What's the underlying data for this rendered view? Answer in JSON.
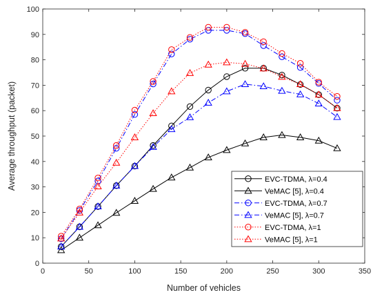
{
  "chart_data": {
    "type": "line",
    "title": "",
    "xlabel": "Number of vehicles",
    "ylabel": "Average throughput (packet)",
    "xlim": [
      0,
      350
    ],
    "ylim": [
      0,
      100
    ],
    "xticks": [
      0,
      50,
      100,
      150,
      200,
      250,
      300,
      350
    ],
    "yticks": [
      0,
      10,
      20,
      30,
      40,
      50,
      60,
      70,
      80,
      90,
      100
    ],
    "grid": false,
    "legend_position": "lower-right",
    "x": [
      20,
      40,
      60,
      80,
      100,
      120,
      140,
      160,
      180,
      200,
      220,
      240,
      260,
      280,
      300,
      320
    ],
    "series": [
      {
        "name": "EVC-TDMA, λ=0.4",
        "color": "#000000",
        "line_style": "solid",
        "marker": "circle",
        "values": [
          6.5,
          14.3,
          22.3,
          30.5,
          38.2,
          46.3,
          54.0,
          61.6,
          68.1,
          73.4,
          76.7,
          76.7,
          74.0,
          70.3,
          66.3,
          61.0
        ]
      },
      {
        "name": "VeMAC [5], λ=0.4",
        "color": "#000000",
        "line_style": "solid",
        "marker": "triangle",
        "values": [
          5.1,
          10.0,
          14.9,
          19.8,
          24.5,
          29.2,
          33.7,
          37.6,
          41.6,
          44.5,
          47.1,
          49.5,
          50.4,
          49.5,
          48.2,
          45.2
        ]
      },
      {
        "name": "EVC-TDMA, λ=0.7",
        "color": "#0000ff",
        "line_style": "dashdot",
        "marker": "circle",
        "values": [
          9.6,
          20.7,
          32.3,
          45.2,
          58.5,
          70.5,
          82.3,
          88.1,
          91.6,
          91.6,
          90.3,
          85.6,
          81.2,
          77.0,
          70.7,
          64.1
        ]
      },
      {
        "name": "VeMAC [5], λ=0.7",
        "color": "#0000ff",
        "line_style": "dashdot",
        "marker": "triangle",
        "values": [
          6.5,
          14.3,
          22.3,
          30.5,
          38.2,
          45.7,
          52.7,
          57.4,
          63.1,
          67.6,
          70.4,
          69.6,
          67.8,
          66.4,
          62.8,
          57.5
        ]
      },
      {
        "name": "EVC-TDMA, λ=1",
        "color": "#ff0000",
        "line_style": "dotted",
        "marker": "circle",
        "values": [
          10.6,
          21.3,
          33.5,
          46.3,
          60.2,
          71.5,
          84.0,
          88.8,
          92.8,
          92.8,
          90.8,
          87.1,
          82.5,
          78.6,
          71.2,
          65.6
        ]
      },
      {
        "name": "VeMAC [5], λ=1",
        "color": "#ff0000",
        "line_style": "dotted",
        "marker": "triangle",
        "values": [
          9.7,
          19.9,
          30.2,
          39.5,
          49.5,
          59.0,
          67.6,
          74.8,
          78.1,
          79.0,
          78.4,
          76.6,
          73.3,
          70.4,
          66.3,
          61.0
        ]
      }
    ]
  }
}
